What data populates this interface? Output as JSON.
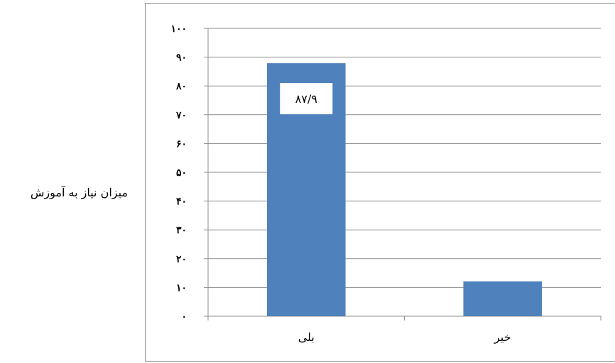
{
  "chart_data": {
    "type": "bar",
    "title": "",
    "xlabel": "",
    "ylabel": "میزان نیاز به آموزش",
    "categories": [
      "بلی",
      "خیر"
    ],
    "values": [
      87.9,
      12.1
    ],
    "data_labels": [
      "۸۷/۹",
      ""
    ],
    "ylim": [
      0,
      100
    ],
    "yticks": [
      0,
      10,
      20,
      30,
      40,
      50,
      60,
      70,
      80,
      90,
      100
    ],
    "ytick_labels": [
      "۰",
      "۱۰",
      "۲۰",
      "۳۰",
      "۴۰",
      "۵۰",
      "۶۰",
      "۷۰",
      "۸۰",
      "۹۰",
      "۱۰۰"
    ],
    "grid": true,
    "legend": "none",
    "bar_color": "#4f81bd",
    "gridline_color": "#8c8c8c",
    "data_label_background": "#ffffff"
  }
}
